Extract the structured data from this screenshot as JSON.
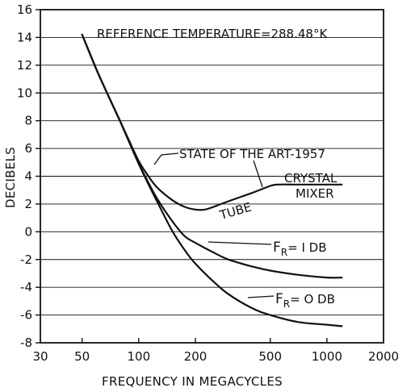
{
  "chart_data": {
    "type": "line",
    "title": "",
    "xlabel": "FREQUENCY IN MEGACYCLES",
    "ylabel": "DECIBELS",
    "xscale": "log",
    "xlim": [
      30,
      2000
    ],
    "ylim": [
      -8,
      16
    ],
    "xticks": [
      30,
      50,
      100,
      200,
      500,
      1000,
      2000
    ],
    "xtick_labels": [
      "30",
      "50",
      "100",
      "200",
      "500",
      "1000",
      "2000"
    ],
    "yticks": [
      -8,
      -6,
      -4,
      -2,
      0,
      2,
      4,
      6,
      8,
      10,
      12,
      14,
      16
    ],
    "ytick_labels": [
      "-8",
      "-6",
      "-4",
      "-2",
      "0",
      "2",
      "4",
      "6",
      "8",
      "10",
      "12",
      "14",
      "16"
    ],
    "grid": "horizontal",
    "series": [
      {
        "name": "STATE OF THE ART-1957",
        "x": [
          50,
          60,
          70,
          80,
          90,
          100,
          110,
          125,
          150,
          175,
          200,
          225,
          250,
          300,
          400,
          500,
          550,
          700,
          1000,
          1200
        ],
        "y": [
          14.2,
          11.6,
          9.6,
          7.9,
          6.4,
          5.1,
          4.2,
          3.2,
          2.3,
          1.8,
          1.6,
          1.6,
          1.8,
          2.2,
          2.8,
          3.3,
          3.4,
          3.4,
          3.4,
          3.4
        ]
      },
      {
        "name": "F_R = 1 DB",
        "x": [
          50,
          60,
          70,
          80,
          90,
          100,
          110,
          125,
          150,
          175,
          200,
          250,
          300,
          400,
          500,
          700,
          1000,
          1200
        ],
        "y": [
          14.2,
          11.6,
          9.6,
          7.9,
          6.3,
          4.9,
          3.8,
          2.4,
          0.8,
          -0.3,
          -0.8,
          -1.5,
          -2.0,
          -2.5,
          -2.8,
          -3.1,
          -3.3,
          -3.3
        ]
      },
      {
        "name": "F_R = 0 DB",
        "x": [
          50,
          60,
          70,
          80,
          90,
          100,
          110,
          125,
          150,
          175,
          200,
          250,
          300,
          400,
          500,
          700,
          1000,
          1200
        ],
        "y": [
          14.2,
          11.6,
          9.6,
          7.9,
          6.3,
          4.9,
          3.7,
          2.2,
          0.1,
          -1.3,
          -2.3,
          -3.6,
          -4.5,
          -5.5,
          -6.0,
          -6.5,
          -6.7,
          -6.8
        ]
      }
    ],
    "annotations": {
      "reference": "REFERENCE TEMPERATURE=288.48°K",
      "state": "STATE OF THE ART-1957",
      "tube": "TUBE",
      "crystal": "CRYSTAL",
      "mixer": "MIXER",
      "fr1_main": "F",
      "fr1_sub": "R",
      "fr1_rest": "= I DB",
      "fr0_main": "F",
      "fr0_sub": "R",
      "fr0_rest": "= O DB"
    }
  }
}
